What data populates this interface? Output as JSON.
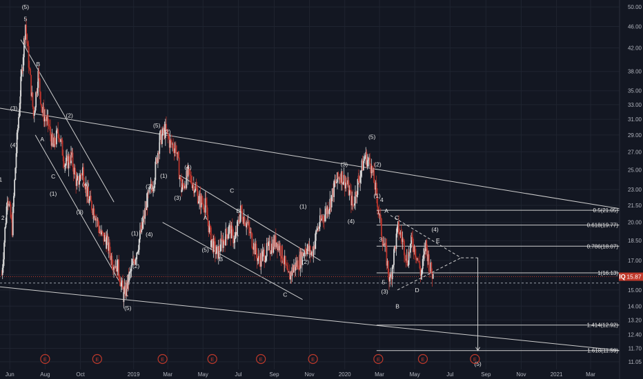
{
  "symbol_tag": "IQ",
  "last_price_label": "15.87",
  "colors": {
    "background": "#131722",
    "grid": "#1f2430",
    "up": "#d8d8d8",
    "down": "#b8342c",
    "lines": "#cfcfcf",
    "text": "#e6e6e6",
    "axis_text": "#b2b5be",
    "last_price_line": "#c0392b",
    "earnings": "#c0392b"
  },
  "chart_data": {
    "type": "candlestick",
    "scale": "log",
    "ylim": [
      10.7,
      51.5
    ],
    "x_range": [
      "2018-05-15",
      "2021-04-20"
    ],
    "y_ticks": [
      "50.00",
      "46.00",
      "42.00",
      "38.00",
      "35.00",
      "33.00",
      "31.00",
      "29.00",
      "27.00",
      "25.00",
      "23.00",
      "21.50",
      "20.00",
      "18.50",
      "17.00",
      "16.00",
      "15.00",
      "14.00",
      "13.20",
      "12.40",
      "11.70",
      "11.05"
    ],
    "x_ticks": [
      {
        "date": "2018-06-01",
        "label": "Jun"
      },
      {
        "date": "2018-08-01",
        "label": "Aug"
      },
      {
        "date": "2018-10-01",
        "label": "Oct"
      },
      {
        "date": "2019-01-01",
        "label": "2019"
      },
      {
        "date": "2019-03-01",
        "label": "Mar"
      },
      {
        "date": "2019-05-01",
        "label": "May"
      },
      {
        "date": "2019-07-01",
        "label": "Jul"
      },
      {
        "date": "2019-09-01",
        "label": "Sep"
      },
      {
        "date": "2019-11-01",
        "label": "Nov"
      },
      {
        "date": "2020-01-01",
        "label": "2020"
      },
      {
        "date": "2020-03-01",
        "label": "Mar"
      },
      {
        "date": "2020-05-01",
        "label": "May"
      },
      {
        "date": "2020-07-01",
        "label": "Jul"
      },
      {
        "date": "2020-09-01",
        "label": "Sep"
      },
      {
        "date": "2020-11-01",
        "label": "Nov"
      },
      {
        "date": "2021-01-01",
        "label": "2021"
      },
      {
        "date": "2021-03-01",
        "label": "Mar"
      }
    ],
    "price_path": [
      [
        "2018-05-18",
        16.0
      ],
      [
        "2018-05-28",
        22.5
      ],
      [
        "2018-06-05",
        19.5
      ],
      [
        "2018-06-12",
        27.0
      ],
      [
        "2018-06-20",
        36.0
      ],
      [
        "2018-06-28",
        46.5
      ],
      [
        "2018-07-05",
        38.0
      ],
      [
        "2018-07-12",
        31.5
      ],
      [
        "2018-07-20",
        37.5
      ],
      [
        "2018-07-27",
        32.0
      ],
      [
        "2018-08-06",
        30.5
      ],
      [
        "2018-08-15",
        27.5
      ],
      [
        "2018-08-24",
        29.5
      ],
      [
        "2018-09-05",
        25.5
      ],
      [
        "2018-09-15",
        26.5
      ],
      [
        "2018-09-25",
        23.5
      ],
      [
        "2018-10-05",
        25.0
      ],
      [
        "2018-10-15",
        22.0
      ],
      [
        "2018-10-25",
        21.0
      ],
      [
        "2018-11-05",
        19.0
      ],
      [
        "2018-11-15",
        18.5
      ],
      [
        "2018-11-25",
        17.0
      ],
      [
        "2018-12-05",
        16.5
      ],
      [
        "2018-12-15",
        14.6
      ],
      [
        "2018-12-24",
        15.8
      ],
      [
        "2019-01-05",
        17.5
      ],
      [
        "2019-01-15",
        19.5
      ],
      [
        "2019-01-25",
        22.0
      ],
      [
        "2019-02-05",
        24.0
      ],
      [
        "2019-02-15",
        28.5
      ],
      [
        "2019-02-25",
        29.5
      ],
      [
        "2019-03-05",
        28.0
      ],
      [
        "2019-03-15",
        27.5
      ],
      [
        "2019-03-25",
        23.0
      ],
      [
        "2019-04-05",
        24.5
      ],
      [
        "2019-04-15",
        23.5
      ],
      [
        "2019-04-25",
        22.0
      ],
      [
        "2019-05-05",
        21.5
      ],
      [
        "2019-05-15",
        18.5
      ],
      [
        "2019-05-25",
        17.5
      ],
      [
        "2019-06-05",
        18.5
      ],
      [
        "2019-06-15",
        19.5
      ],
      [
        "2019-06-25",
        18.5
      ],
      [
        "2019-07-05",
        21.0
      ],
      [
        "2019-07-15",
        20.0
      ],
      [
        "2019-07-25",
        18.5
      ],
      [
        "2019-08-05",
        17.0
      ],
      [
        "2019-08-15",
        17.5
      ],
      [
        "2019-08-25",
        18.0
      ],
      [
        "2019-09-05",
        18.5
      ],
      [
        "2019-09-15",
        17.5
      ],
      [
        "2019-09-25",
        15.8
      ],
      [
        "2019-10-05",
        16.5
      ],
      [
        "2019-10-15",
        17.0
      ],
      [
        "2019-10-25",
        18.0
      ],
      [
        "2019-11-05",
        17.5
      ],
      [
        "2019-11-15",
        19.5
      ],
      [
        "2019-11-25",
        20.5
      ],
      [
        "2019-12-05",
        21.5
      ],
      [
        "2019-12-15",
        23.5
      ],
      [
        "2019-12-25",
        24.5
      ],
      [
        "2020-01-05",
        23.5
      ],
      [
        "2020-01-15",
        21.5
      ],
      [
        "2020-01-25",
        24.0
      ],
      [
        "2020-02-05",
        26.5
      ],
      [
        "2020-02-15",
        25.5
      ],
      [
        "2020-02-25",
        22.5
      ],
      [
        "2020-03-05",
        19.0
      ],
      [
        "2020-03-12",
        17.5
      ],
      [
        "2020-03-19",
        15.5
      ],
      [
        "2020-03-26",
        17.5
      ],
      [
        "2020-04-02",
        19.5
      ],
      [
        "2020-04-10",
        18.5
      ],
      [
        "2020-04-18",
        17.0
      ],
      [
        "2020-04-26",
        18.5
      ],
      [
        "2020-05-04",
        17.5
      ],
      [
        "2020-05-12",
        16.0
      ],
      [
        "2020-05-20",
        18.2
      ],
      [
        "2020-05-27",
        16.5
      ],
      [
        "2020-06-02",
        15.87
      ]
    ],
    "trendlines": [
      {
        "from": [
          "2018-05-15",
          32.5
        ],
        "to": [
          "2021-04-20",
          21.2
        ]
      },
      {
        "from": [
          "2018-05-15",
          15.2
        ],
        "to": [
          "2021-04-20",
          11.6
        ]
      },
      {
        "from": [
          "2018-06-20",
          43.5
        ],
        "to": [
          "2018-11-28",
          21.8
        ]
      },
      {
        "from": [
          "2018-07-15",
          29.0
        ],
        "to": [
          "2018-12-22",
          14.6
        ]
      },
      {
        "from": [
          "2019-03-20",
          24.5
        ],
        "to": [
          "2019-11-20",
          17.0
        ]
      },
      {
        "from": [
          "2019-02-20",
          20.0
        ],
        "to": [
          "2019-10-20",
          14.4
        ]
      }
    ],
    "fib_levels": [
      {
        "label": "0.5(21.05)",
        "value": 21.05
      },
      {
        "label": "0.618(19.77)",
        "value": 19.77
      },
      {
        "label": "0.786(18.07)",
        "value": 18.07
      },
      {
        "label": "1(16.13)",
        "value": 16.13
      },
      {
        "label": "1.414(12.92)",
        "value": 12.92
      },
      {
        "label": "1.618(11.59)",
        "value": 11.59
      }
    ],
    "fib_start": "2020-02-25",
    "projection": {
      "top": [
        [
          "2020-03-20",
          20.6
        ],
        [
          "2020-07-20",
          17.2
        ]
      ],
      "bottom": [
        [
          "2020-04-01",
          15.0
        ],
        [
          "2020-07-20",
          17.2
        ]
      ],
      "drop": [
        [
          "2020-08-18",
          17.2
        ],
        [
          "2020-08-18",
          11.59
        ]
      ]
    },
    "dotted_level": 15.45,
    "last_price": 15.87,
    "wave_labels": [
      {
        "t": "(5)",
        "d": "2018-06-28",
        "v": 50.0
      },
      {
        "t": "5",
        "d": "2018-06-28",
        "v": 47.5
      },
      {
        "t": "B",
        "d": "2018-07-20",
        "v": 39.2
      },
      {
        "t": "(3)",
        "d": "2018-06-08",
        "v": 32.5
      },
      {
        "t": "(4)",
        "d": "2018-06-08",
        "v": 27.8
      },
      {
        "t": "1",
        "d": "2018-05-16",
        "v": 24.0
      },
      {
        "t": "2",
        "d": "2018-05-20",
        "v": 20.4
      },
      {
        "t": "A",
        "d": "2018-07-27",
        "v": 28.5
      },
      {
        "t": "C",
        "d": "2018-08-15",
        "v": 24.3
      },
      {
        "t": "(1)",
        "d": "2018-08-15",
        "v": 22.6
      },
      {
        "t": "(2)",
        "d": "2018-09-12",
        "v": 31.5
      },
      {
        "t": "(4)",
        "d": "2018-10-10",
        "v": 23.5
      },
      {
        "t": "(3)",
        "d": "2018-09-30",
        "v": 20.9
      },
      {
        "t": "(5)",
        "d": "2018-12-22",
        "v": 13.9
      },
      {
        "t": "(1)",
        "d": "2019-01-03",
        "v": 19.1
      },
      {
        "t": "(2)",
        "d": "2019-01-05",
        "v": 16.6
      },
      {
        "t": "(3)",
        "d": "2019-01-28",
        "v": 23.3
      },
      {
        "t": "(4)",
        "d": "2019-01-28",
        "v": 19.0
      },
      {
        "t": "(5)",
        "d": "2019-02-10",
        "v": 30.2
      },
      {
        "t": "(2)",
        "d": "2019-02-28",
        "v": 29.4
      },
      {
        "t": "(1)",
        "d": "2019-02-22",
        "v": 24.4
      },
      {
        "t": "(3)",
        "d": "2019-03-18",
        "v": 22.2
      },
      {
        "t": "(4)",
        "d": "2019-04-05",
        "v": 25.3
      },
      {
        "t": "A",
        "d": "2019-05-05",
        "v": 20.4
      },
      {
        "t": "(5)",
        "d": "2019-05-05",
        "v": 17.8
      },
      {
        "t": "B",
        "d": "2019-06-01",
        "v": 17.1
      },
      {
        "t": "C",
        "d": "2019-06-20",
        "v": 22.9
      },
      {
        "t": "B",
        "d": "2019-07-01",
        "v": 21.0
      },
      {
        "t": "A",
        "d": "2019-06-28",
        "v": 19.0
      },
      {
        "t": "C",
        "d": "2019-09-20",
        "v": 14.7
      },
      {
        "t": "(1)",
        "d": "2019-10-21",
        "v": 21.4
      },
      {
        "t": "(2)",
        "d": "2019-10-25",
        "v": 16.9
      },
      {
        "t": "(3)",
        "d": "2019-12-31",
        "v": 25.6
      },
      {
        "t": "(4)",
        "d": "2020-01-12",
        "v": 20.1
      },
      {
        "t": "(5)",
        "d": "2020-02-17",
        "v": 28.8
      },
      {
        "t": "(2)",
        "d": "2020-02-27",
        "v": 25.6
      },
      {
        "t": "(1)",
        "d": "2020-02-26",
        "v": 22.4
      },
      {
        "t": "1",
        "d": "2020-02-28",
        "v": 20.9
      },
      {
        "t": "4",
        "d": "2020-03-05",
        "v": 22.0
      },
      {
        "t": "A",
        "d": "2020-03-13",
        "v": 21.0
      },
      {
        "t": "C",
        "d": "2020-03-31",
        "v": 20.4
      },
      {
        "t": "(4)",
        "d": "2020-06-05",
        "v": 19.4
      },
      {
        "t": "E",
        "d": "2020-06-10",
        "v": 18.5
      },
      {
        "t": "3",
        "d": "2020-03-03",
        "v": 18.6
      },
      {
        "t": "5",
        "d": "2020-03-08",
        "v": 15.5
      },
      {
        "t": "(3)",
        "d": "2020-03-10",
        "v": 14.9
      },
      {
        "t": "B",
        "d": "2020-04-01",
        "v": 14.0
      },
      {
        "t": "D",
        "d": "2020-05-05",
        "v": 15.0
      },
      {
        "t": "(5)",
        "d": "2020-08-18",
        "v": 10.95
      }
    ],
    "earnings_dates": [
      "2018-08-01",
      "2018-10-30",
      "2019-02-20",
      "2019-05-17",
      "2019-08-09",
      "2019-11-07",
      "2020-02-28",
      "2020-05-15",
      "2020-08-13"
    ],
    "earnings_marker": "E"
  }
}
